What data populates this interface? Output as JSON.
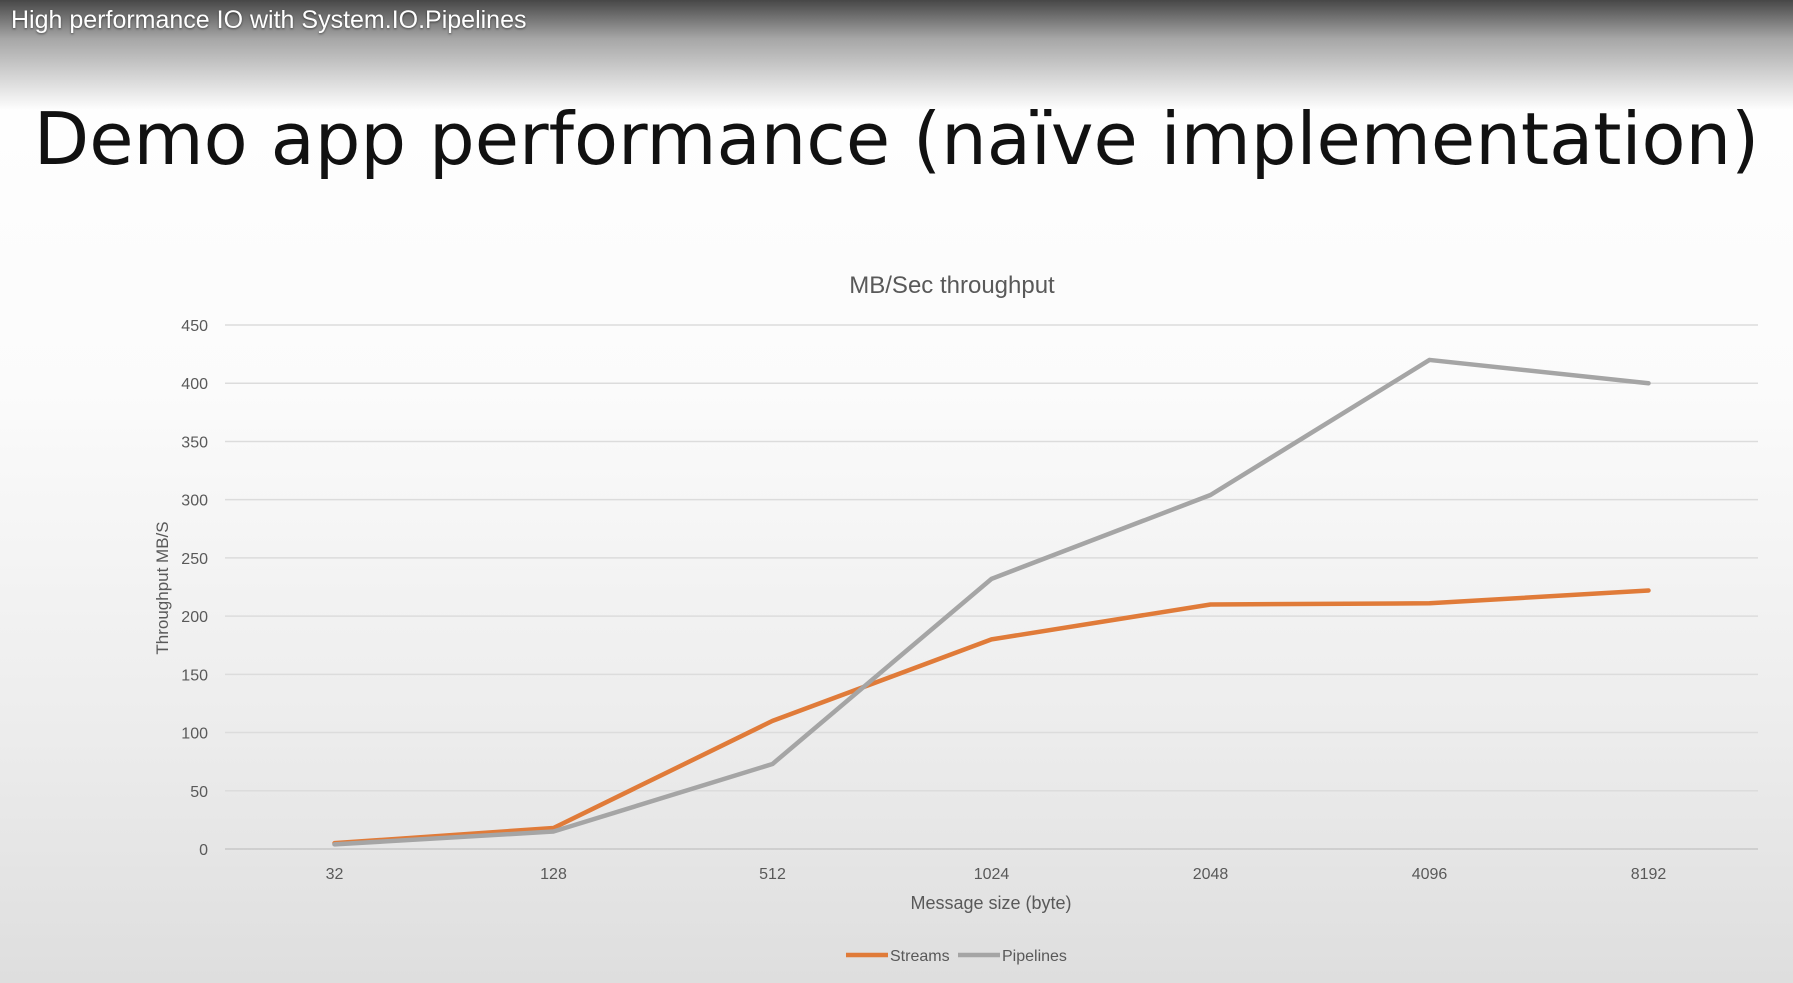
{
  "video": {
    "title": "High performance IO with System.IO.Pipelines"
  },
  "slide": {
    "title": "Demo app performance (naïve implementation)"
  },
  "chart_data": {
    "type": "line",
    "title": "MB/Sec throughput",
    "xlabel": "Message size (byte)",
    "ylabel": "Throughput MB/S",
    "categories": [
      "32",
      "128",
      "512",
      "1024",
      "2048",
      "4096",
      "8192"
    ],
    "ylim": [
      0,
      450
    ],
    "yticks": [
      0,
      50,
      100,
      150,
      200,
      250,
      300,
      350,
      400,
      450
    ],
    "grid": true,
    "legend_position": "bottom",
    "series": [
      {
        "name": "Streams",
        "color": "#E07B39",
        "values": [
          5,
          18,
          110,
          180,
          210,
          211,
          222
        ]
      },
      {
        "name": "Pipelines",
        "color": "#A5A5A5",
        "values": [
          4,
          15,
          73,
          232,
          304,
          420,
          400
        ]
      }
    ]
  }
}
